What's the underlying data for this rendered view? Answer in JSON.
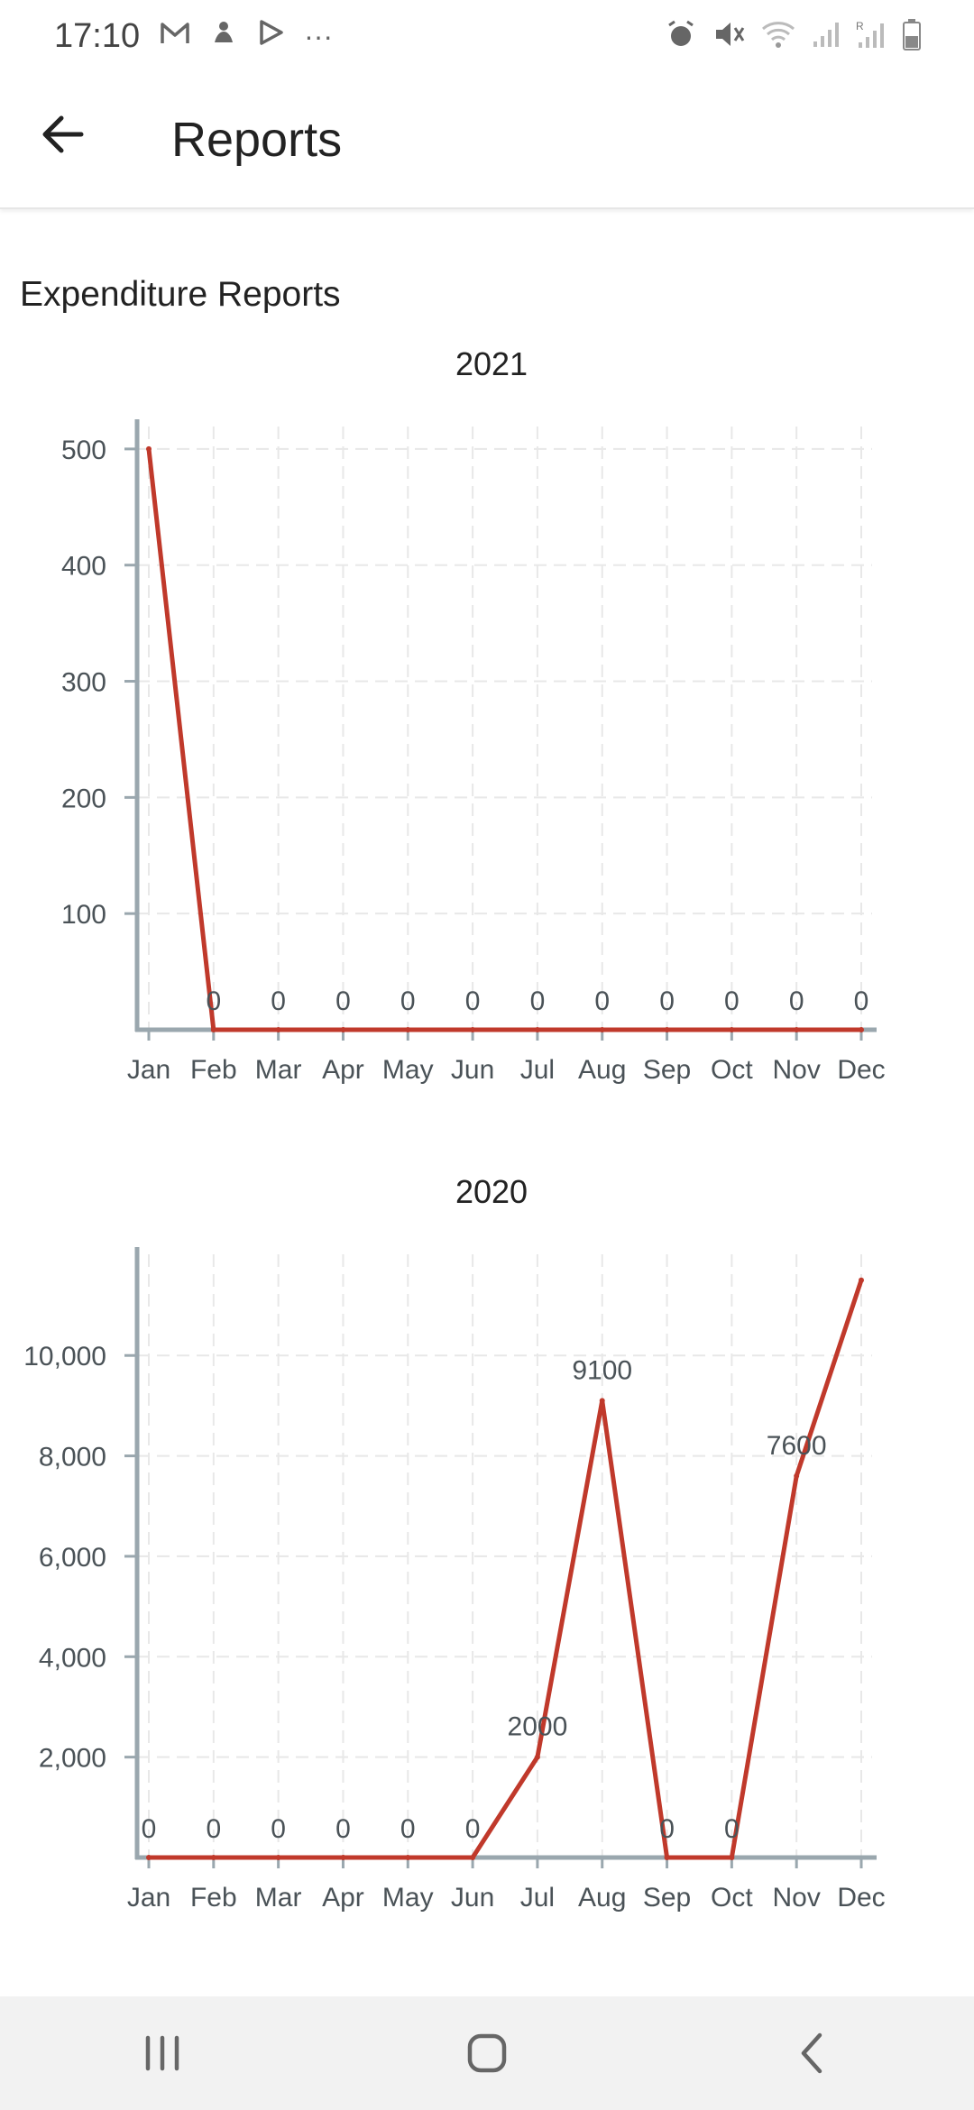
{
  "status_bar": {
    "time": "17:10",
    "left_icons": [
      "gmail-icon",
      "notification-icon",
      "play-store-icon",
      "more-dots-icon"
    ],
    "right_icons": [
      "alarm-icon",
      "mute-icon",
      "wifi-icon",
      "signal-icon",
      "signal-roaming-icon",
      "battery-icon"
    ],
    "more_label": "···"
  },
  "app_bar": {
    "title": "Reports",
    "back_icon": "arrow-left-icon"
  },
  "section": {
    "title": "Expenditure Reports"
  },
  "colors": {
    "line": "#c0392b",
    "axis": "#9aa7ae",
    "grid": "#e8e8e8",
    "text": "#4a5257"
  },
  "chart_data": [
    {
      "type": "line",
      "title": "2021",
      "categories": [
        "Jan",
        "Feb",
        "Mar",
        "Apr",
        "May",
        "Jun",
        "Jul",
        "Aug",
        "Sep",
        "Oct",
        "Nov",
        "Dec"
      ],
      "values": [
        500,
        0,
        0,
        0,
        0,
        0,
        0,
        0,
        0,
        0,
        0,
        0
      ],
      "data_labels": [
        "",
        "0",
        "0",
        "0",
        "0",
        "0",
        "0",
        "0",
        "0",
        "0",
        "0",
        "0"
      ],
      "ylim": [
        0,
        510
      ],
      "yticks": [
        100,
        200,
        300,
        400,
        500
      ],
      "ytick_labels": [
        "100",
        "200",
        "300",
        "400",
        "500"
      ],
      "grid": true
    },
    {
      "type": "line",
      "title": "2020",
      "categories": [
        "Jan",
        "Feb",
        "Mar",
        "Apr",
        "May",
        "Jun",
        "Jul",
        "Aug",
        "Sep",
        "Oct",
        "Nov",
        "Dec"
      ],
      "values": [
        0,
        0,
        0,
        0,
        0,
        0,
        2000,
        9100,
        0,
        0,
        7600,
        11500
      ],
      "data_labels": [
        "0",
        "0",
        "0",
        "0",
        "0",
        "0",
        "2000",
        "9100",
        "0",
        "0",
        "7600",
        ""
      ],
      "ylim": [
        0,
        11800
      ],
      "yticks": [
        2000,
        4000,
        6000,
        8000,
        10000
      ],
      "ytick_labels": [
        "2,000",
        "4,000",
        "6,000",
        "8,000",
        "10,000"
      ],
      "grid": true
    }
  ],
  "nav_bar": {
    "items": [
      "recent-apps-icon",
      "home-icon",
      "back-icon"
    ]
  }
}
